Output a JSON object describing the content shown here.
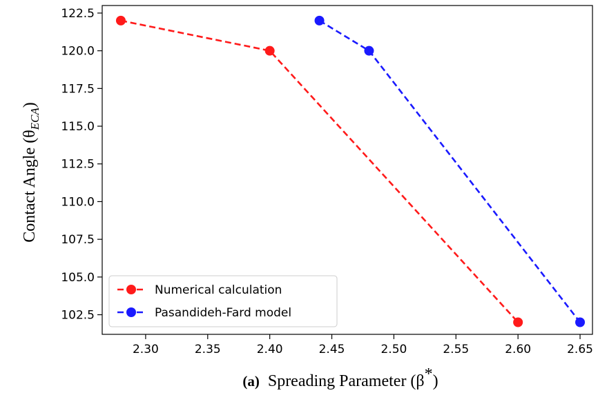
{
  "chart_data": {
    "type": "line",
    "title": "",
    "panel_label": "(a)",
    "xlabel": "Spreading Parameter (β",
    "xlabel_sup": "*",
    "xlabel_close": ")",
    "ylabel": "Contact Angle (θ",
    "ylabel_sub": "ECA",
    "ylabel_close": ")",
    "xlim": [
      2.265,
      2.66
    ],
    "ylim": [
      101.2,
      123.0
    ],
    "xticks": [
      2.3,
      2.35,
      2.4,
      2.45,
      2.5,
      2.55,
      2.6,
      2.65
    ],
    "xtick_labels": [
      "2.30",
      "2.35",
      "2.40",
      "2.45",
      "2.50",
      "2.55",
      "2.60",
      "2.65"
    ],
    "yticks": [
      102.5,
      105.0,
      107.5,
      110.0,
      112.5,
      115.0,
      117.5,
      120.0,
      122.5
    ],
    "ytick_labels": [
      "102.5",
      "105.0",
      "107.5",
      "110.0",
      "112.5",
      "115.0",
      "117.5",
      "120.0",
      "122.5"
    ],
    "grid": false,
    "legend_position": "lower-left",
    "series": [
      {
        "name": "Numerical calculation",
        "color": "#ff1a1a",
        "style": "dashed",
        "marker": "circle",
        "x": [
          2.28,
          2.4,
          2.6
        ],
        "y": [
          122.0,
          120.0,
          102.0
        ]
      },
      {
        "name": "Pasandideh-Fard model",
        "color": "#1a1aff",
        "style": "dashed",
        "marker": "circle",
        "x": [
          2.44,
          2.48,
          2.65
        ],
        "y": [
          122.0,
          120.0,
          102.0
        ]
      }
    ]
  }
}
